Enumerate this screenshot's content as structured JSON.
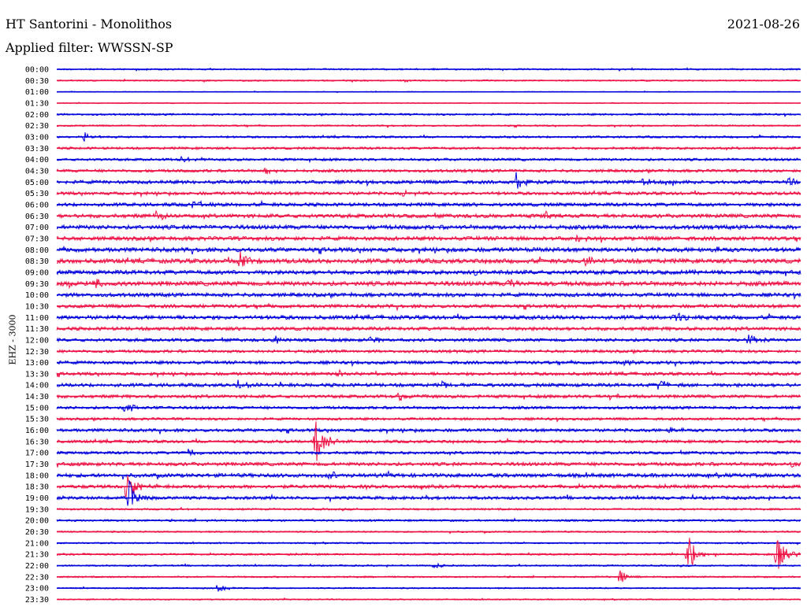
{
  "header": {
    "title": "HT Santorini - Monolithos",
    "date": "2021-08-26",
    "filter": "Applied filter: WWSSN-SP"
  },
  "ylabel": "EHZ - 3000",
  "colors": {
    "odd": "#0000dd",
    "even": "#ee1144",
    "text": "#000000"
  },
  "chart_data": {
    "type": "line",
    "title": "HT Santorini - Monolithos",
    "ylabel": "EHZ - 3000",
    "xlabel": "",
    "rows": [
      "00:00",
      "00:30",
      "01:00",
      "01:30",
      "02:00",
      "02:30",
      "03:00",
      "03:30",
      "04:00",
      "04:30",
      "05:00",
      "05:30",
      "06:00",
      "06:30",
      "07:00",
      "07:30",
      "08:00",
      "08:30",
      "09:00",
      "09:30",
      "10:00",
      "10:30",
      "11:00",
      "11:30",
      "12:00",
      "12:30",
      "13:00",
      "13:30",
      "14:00",
      "14:30",
      "15:00",
      "15:30",
      "16:00",
      "16:30",
      "17:00",
      "17:30",
      "18:00",
      "18:30",
      "19:00",
      "19:30",
      "20:00",
      "20:30",
      "21:00",
      "21:30",
      "22:00",
      "22:30",
      "23:00",
      "23:30"
    ],
    "noise": [
      1.0,
      0.9,
      0.5,
      0.6,
      1.2,
      1.0,
      1.3,
      1.5,
      1.6,
      1.8,
      2.2,
      2.0,
      2.2,
      2.4,
      2.6,
      2.5,
      2.7,
      2.8,
      2.6,
      2.8,
      2.4,
      2.2,
      2.5,
      2.2,
      2.0,
      1.8,
      2.0,
      2.0,
      2.2,
      2.0,
      1.8,
      1.6,
      2.0,
      1.8,
      1.8,
      2.2,
      2.4,
      2.2,
      2.0,
      1.2,
      1.3,
      1.0,
      1.0,
      1.2,
      1.0,
      1.0,
      0.9,
      0.8
    ],
    "events": [
      {
        "row": 0,
        "minute": 3.2,
        "amp": 2
      },
      {
        "row": 6,
        "minute": 1.1,
        "amp": 6
      },
      {
        "row": 8,
        "minute": 5.0,
        "amp": 4
      },
      {
        "row": 9,
        "minute": 8.4,
        "amp": 5
      },
      {
        "row": 10,
        "minute": 18.5,
        "amp": 13
      },
      {
        "row": 10,
        "minute": 23.5,
        "amp": 6
      },
      {
        "row": 10,
        "minute": 29.5,
        "amp": 7
      },
      {
        "row": 11,
        "minute": 14.0,
        "amp": 5
      },
      {
        "row": 12,
        "minute": 5.5,
        "amp": 6
      },
      {
        "row": 13,
        "minute": 3.9,
        "amp": 9
      },
      {
        "row": 13,
        "minute": 19.7,
        "amp": 5
      },
      {
        "row": 15,
        "minute": 21.0,
        "amp": 6
      },
      {
        "row": 16,
        "minute": 26.4,
        "amp": 6
      },
      {
        "row": 17,
        "minute": 7.4,
        "amp": 15
      },
      {
        "row": 17,
        "minute": 21.3,
        "amp": 6
      },
      {
        "row": 18,
        "minute": 16.8,
        "amp": 5
      },
      {
        "row": 18,
        "minute": 25.1,
        "amp": 5
      },
      {
        "row": 19,
        "minute": 0.5,
        "amp": 7
      },
      {
        "row": 19,
        "minute": 1.5,
        "amp": 8
      },
      {
        "row": 19,
        "minute": 18.2,
        "amp": 6
      },
      {
        "row": 22,
        "minute": 24.9,
        "amp": 7
      },
      {
        "row": 24,
        "minute": 8.8,
        "amp": 5
      },
      {
        "row": 24,
        "minute": 12.6,
        "amp": 6
      },
      {
        "row": 24,
        "minute": 27.9,
        "amp": 7
      },
      {
        "row": 26,
        "minute": 22.8,
        "amp": 5
      },
      {
        "row": 27,
        "minute": 11.3,
        "amp": 5
      },
      {
        "row": 28,
        "minute": 7.3,
        "amp": 6
      },
      {
        "row": 28,
        "minute": 15.6,
        "amp": 5
      },
      {
        "row": 28,
        "minute": 24.3,
        "amp": 7
      },
      {
        "row": 29,
        "minute": 13.8,
        "amp": 6
      },
      {
        "row": 29,
        "minute": 22.2,
        "amp": 5
      },
      {
        "row": 30,
        "minute": 2.7,
        "amp": 8
      },
      {
        "row": 32,
        "minute": 24.7,
        "amp": 7
      },
      {
        "row": 33,
        "minute": 10.4,
        "amp": 34
      },
      {
        "row": 34,
        "minute": 5.3,
        "amp": 5
      },
      {
        "row": 35,
        "minute": 29.6,
        "amp": 6
      },
      {
        "row": 36,
        "minute": 11.0,
        "amp": 6
      },
      {
        "row": 37,
        "minute": 2.8,
        "amp": 24
      },
      {
        "row": 38,
        "minute": 2.9,
        "amp": 28
      },
      {
        "row": 43,
        "minute": 25.4,
        "amp": 32
      },
      {
        "row": 43,
        "minute": 29.0,
        "amp": 26
      },
      {
        "row": 44,
        "minute": 15.2,
        "amp": 4
      },
      {
        "row": 45,
        "minute": 22.7,
        "amp": 10
      },
      {
        "row": 46,
        "minute": 6.5,
        "amp": 5
      }
    ]
  }
}
